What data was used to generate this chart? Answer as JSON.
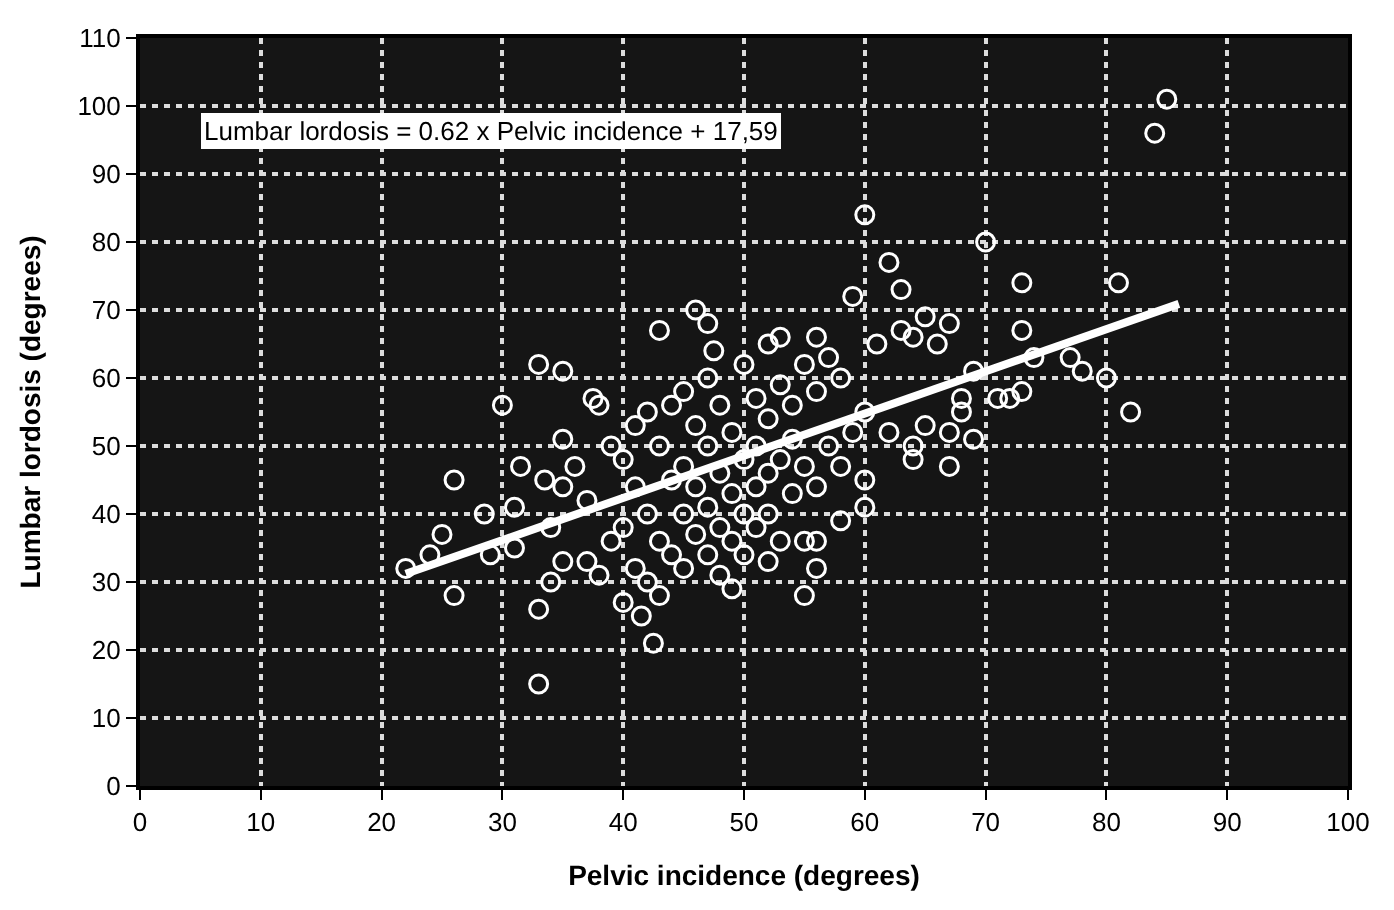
{
  "chart_data": {
    "type": "scatter",
    "xlabel": "Pelvic incidence (degrees)",
    "ylabel": "Lumbar lordosis (degrees)",
    "xlim": [
      0,
      100
    ],
    "xticks": [
      0,
      10,
      20,
      30,
      40,
      50,
      60,
      70,
      80,
      90,
      100
    ],
    "ylim": [
      0,
      110
    ],
    "yticks": [
      0,
      10,
      20,
      30,
      40,
      50,
      60,
      70,
      80,
      90,
      100,
      110
    ],
    "grid": true,
    "annotations": [
      "Lumbar lordosis = 0.62 x Pelvic incidence + 17,59"
    ],
    "series": [
      {
        "marker": "circle",
        "color": "#ffffff",
        "x": [
          26,
          26,
          25,
          24,
          22,
          28.5,
          29,
          30,
          31,
          31.5,
          31,
          33,
          33,
          33,
          34,
          33.5,
          34,
          35,
          35,
          35,
          35,
          36,
          37,
          37.5,
          37,
          38,
          38,
          39,
          39,
          40,
          40,
          40,
          41,
          41,
          41,
          41.5,
          42,
          42,
          42,
          42.5,
          43,
          43,
          43,
          43,
          44,
          44,
          44,
          45,
          45,
          45,
          45,
          46,
          46,
          46,
          46,
          47,
          47,
          47,
          47,
          47,
          47.5,
          48,
          48,
          48,
          48,
          49,
          49,
          49,
          49,
          50,
          50,
          50,
          50,
          51,
          51,
          51,
          51,
          52,
          52,
          52,
          52,
          52,
          53,
          53,
          53,
          53,
          54,
          54,
          54,
          55,
          55,
          55,
          55,
          56,
          56,
          56,
          56,
          56,
          57,
          57,
          58,
          58,
          58,
          59,
          59,
          60,
          60,
          60,
          60,
          61,
          62,
          62,
          63,
          63,
          64,
          64,
          64,
          65,
          65,
          66,
          67,
          67,
          67,
          68,
          68,
          69,
          69,
          70,
          71,
          72,
          73,
          73,
          73,
          74,
          77,
          78,
          80,
          81,
          82,
          84,
          85
        ],
        "values": [
          45,
          28,
          37,
          34,
          32,
          40,
          34,
          56,
          41,
          47,
          35,
          62,
          26,
          15,
          30,
          45,
          38,
          61,
          51,
          44,
          33,
          47,
          42,
          57,
          33,
          56,
          31,
          50,
          36,
          48,
          27,
          38,
          44,
          53,
          32,
          25,
          55,
          40,
          30,
          21,
          67,
          50,
          36,
          28,
          56,
          45,
          34,
          58,
          47,
          40,
          32,
          70,
          53,
          44,
          37,
          68,
          60,
          50,
          41,
          34,
          64,
          56,
          46,
          38,
          31,
          52,
          43,
          36,
          29,
          62,
          48,
          40,
          34,
          57,
          50,
          44,
          38,
          65,
          54,
          46,
          40,
          33,
          59,
          66,
          48,
          36,
          56,
          43,
          51,
          62,
          47,
          36,
          28,
          66,
          58,
          44,
          32,
          36,
          63,
          50,
          60,
          47,
          39,
          72,
          52,
          84,
          55,
          41,
          45,
          65,
          77,
          52,
          67,
          73,
          66,
          50,
          48,
          69,
          53,
          65,
          68,
          52,
          47,
          57,
          55,
          61,
          51,
          80,
          57,
          57,
          74,
          67,
          58,
          63,
          63,
          61,
          60,
          74,
          55,
          96,
          101
        ]
      },
      {
        "type": "line",
        "color": "#ffffff",
        "x": [
          22,
          86
        ],
        "values": [
          31.2,
          70.9
        ],
        "marker": "none",
        "line_style": "solid"
      }
    ]
  }
}
